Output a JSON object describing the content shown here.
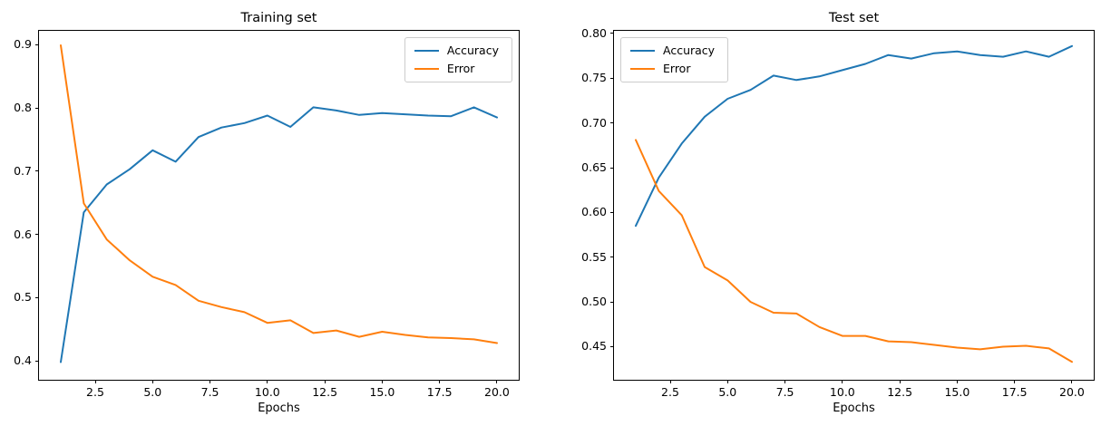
{
  "figure": {
    "background": "#ffffff",
    "accent_blue": "#1f77b4",
    "accent_orange": "#ff7f0e"
  },
  "chart_data": [
    {
      "type": "line",
      "title": "Training set",
      "xlabel": "Epochs",
      "grid": false,
      "legend_position": "top-right",
      "x": [
        1,
        2,
        3,
        4,
        5,
        6,
        7,
        8,
        9,
        10,
        11,
        12,
        13,
        14,
        15,
        16,
        17,
        18,
        19,
        20
      ],
      "series": [
        {
          "name": "Accuracy",
          "color": "#1f77b4",
          "values": [
            0.398,
            0.635,
            0.679,
            0.703,
            0.733,
            0.715,
            0.754,
            0.769,
            0.776,
            0.788,
            0.77,
            0.801,
            0.796,
            0.789,
            0.792,
            0.79,
            0.788,
            0.787,
            0.801,
            0.785
          ]
        },
        {
          "name": "Error",
          "color": "#ff7f0e",
          "values": [
            0.899,
            0.649,
            0.592,
            0.559,
            0.533,
            0.52,
            0.495,
            0.485,
            0.477,
            0.46,
            0.464,
            0.444,
            0.448,
            0.438,
            0.446,
            0.441,
            0.437,
            0.436,
            0.434,
            0.428
          ]
        }
      ],
      "xlim": [
        0.05,
        20.95
      ],
      "ylim": [
        0.37,
        0.922
      ],
      "xticks": {
        "values": [
          2.5,
          5,
          7.5,
          10,
          12.5,
          15,
          17.5,
          20
        ],
        "labels": [
          "2.5",
          "5.0",
          "7.5",
          "10.0",
          "12.5",
          "15.0",
          "17.5",
          "20.0"
        ]
      },
      "yticks": {
        "values": [
          0.4,
          0.5,
          0.6,
          0.7,
          0.8,
          0.9
        ],
        "labels": [
          "0.4",
          "0.5",
          "0.6",
          "0.7",
          "0.8",
          "0.9"
        ]
      }
    },
    {
      "type": "line",
      "title": "Test set",
      "xlabel": "Epochs",
      "grid": false,
      "legend_position": "top-left",
      "x": [
        1,
        2,
        3,
        4,
        5,
        6,
        7,
        8,
        9,
        10,
        11,
        12,
        13,
        14,
        15,
        16,
        17,
        18,
        19,
        20
      ],
      "series": [
        {
          "name": "Accuracy",
          "color": "#1f77b4",
          "values": [
            0.585,
            0.639,
            0.677,
            0.707,
            0.727,
            0.737,
            0.753,
            0.748,
            0.752,
            0.759,
            0.766,
            0.776,
            0.772,
            0.778,
            0.78,
            0.776,
            0.774,
            0.78,
            0.774,
            0.786
          ]
        },
        {
          "name": "Error",
          "color": "#ff7f0e",
          "values": [
            0.681,
            0.624,
            0.597,
            0.539,
            0.524,
            0.5,
            0.488,
            0.487,
            0.472,
            0.462,
            0.462,
            0.456,
            0.455,
            0.452,
            0.449,
            0.447,
            0.45,
            0.451,
            0.448,
            0.433
          ]
        }
      ],
      "xlim": [
        0.05,
        20.95
      ],
      "ylim": [
        0.413,
        0.803
      ],
      "xticks": {
        "values": [
          2.5,
          5,
          7.5,
          10,
          12.5,
          15,
          17.5,
          20
        ],
        "labels": [
          "2.5",
          "5.0",
          "7.5",
          "10.0",
          "12.5",
          "15.0",
          "17.5",
          "20.0"
        ]
      },
      "yticks": {
        "values": [
          0.45,
          0.5,
          0.55,
          0.6,
          0.65,
          0.7,
          0.75,
          0.8
        ],
        "labels": [
          "0.45",
          "0.50",
          "0.55",
          "0.60",
          "0.65",
          "0.70",
          "0.75",
          "0.80"
        ]
      }
    }
  ]
}
